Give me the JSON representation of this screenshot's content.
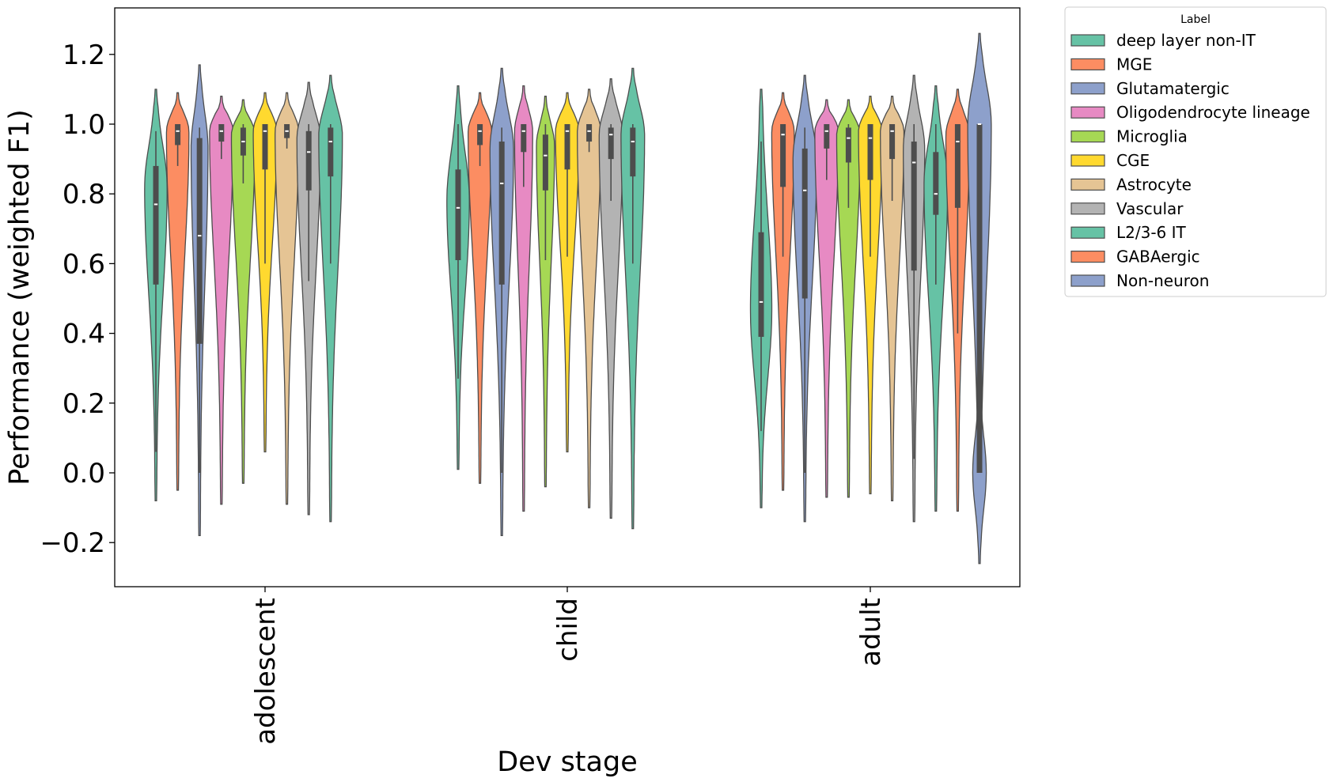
{
  "chart_data": {
    "type": "violin",
    "title": "",
    "xlabel": "Dev stage",
    "ylabel": "Performance (weighted F1)",
    "ylim": [
      -0.33,
      1.33
    ],
    "yticks": [
      -0.2,
      0.0,
      0.2,
      0.4,
      0.6,
      0.8,
      1.0,
      1.2
    ],
    "ytick_labels": [
      "−0.2",
      "0.0",
      "0.2",
      "0.4",
      "0.6",
      "0.8",
      "1.0",
      "1.2"
    ],
    "grid": false,
    "legend": {
      "title": "Label",
      "placement": "outside-top-right",
      "entries": [
        {
          "label": "deep layer non-IT",
          "color": "#66c2a5"
        },
        {
          "label": "MGE",
          "color": "#fc8d62"
        },
        {
          "label": "Glutamatergic",
          "color": "#8da0cb"
        },
        {
          "label": "Oligodendrocyte lineage",
          "color": "#e78ac3"
        },
        {
          "label": "Microglia",
          "color": "#a6d854"
        },
        {
          "label": "CGE",
          "color": "#ffd92f"
        },
        {
          "label": "Astrocyte",
          "color": "#e5c494"
        },
        {
          "label": "Vascular",
          "color": "#b3b3b3"
        },
        {
          "label": "L2/3-6 IT",
          "color": "#66c2a5"
        },
        {
          "label": "GABAergic",
          "color": "#fc8d62"
        },
        {
          "label": "Non-neuron",
          "color": "#8da0cb"
        }
      ]
    },
    "categories": [
      "adolescent",
      "child",
      "adult"
    ],
    "series_order": [
      "deep layer non-IT",
      "MGE",
      "Glutamatergic",
      "Oligodendrocyte lineage",
      "Microglia",
      "CGE",
      "Astrocyte",
      "Vascular",
      "L2/3-6 IT",
      "GABAergic",
      "Non-neuron"
    ],
    "groups": [
      {
        "category": "adolescent",
        "violins": [
          {
            "label": "deep layer non-IT",
            "min": -0.08,
            "max": 1.1,
            "q1": 0.54,
            "median": 0.77,
            "q3": 0.88,
            "whisker_low": 0.06,
            "whisker_high": 0.98,
            "mode": 0.82,
            "width": 0.95
          },
          {
            "label": "MGE",
            "min": -0.05,
            "max": 1.09,
            "q1": 0.94,
            "median": 0.98,
            "q3": 1.0,
            "whisker_low": 0.88,
            "whisker_high": 1.0,
            "mode": 0.98,
            "width": 0.95
          },
          {
            "label": "Glutamatergic",
            "min": -0.18,
            "max": 1.17,
            "q1": 0.37,
            "median": 0.68,
            "q3": 0.96,
            "whisker_low": 0.0,
            "whisker_high": 0.99,
            "mode": 0.93,
            "width": 0.7
          },
          {
            "label": "Oligodendrocyte lineage",
            "min": -0.09,
            "max": 1.08,
            "q1": 0.95,
            "median": 0.98,
            "q3": 1.0,
            "whisker_low": 0.9,
            "whisker_high": 1.0,
            "mode": 0.98,
            "width": 1.0
          },
          {
            "label": "Microglia",
            "min": -0.03,
            "max": 1.07,
            "q1": 0.91,
            "median": 0.95,
            "q3": 0.99,
            "whisker_low": 0.83,
            "whisker_high": 1.0,
            "mode": 0.97,
            "width": 1.0
          },
          {
            "label": "CGE",
            "min": 0.06,
            "max": 1.09,
            "q1": 0.87,
            "median": 0.98,
            "q3": 1.0,
            "whisker_low": 0.6,
            "whisker_high": 1.0,
            "mode": 0.98,
            "width": 1.0
          },
          {
            "label": "Astrocyte",
            "min": -0.09,
            "max": 1.09,
            "q1": 0.96,
            "median": 0.98,
            "q3": 1.0,
            "whisker_low": 0.93,
            "whisker_high": 1.0,
            "mode": 0.98,
            "width": 1.0
          },
          {
            "label": "Vascular",
            "min": -0.12,
            "max": 1.12,
            "q1": 0.81,
            "median": 0.92,
            "q3": 0.98,
            "whisker_low": 0.55,
            "whisker_high": 1.0,
            "mode": 0.96,
            "width": 1.0
          },
          {
            "label": "L2/3-6 IT",
            "min": -0.14,
            "max": 1.14,
            "q1": 0.85,
            "median": 0.95,
            "q3": 0.99,
            "whisker_low": 0.6,
            "whisker_high": 1.0,
            "mode": 0.97,
            "width": 1.0
          },
          {
            "label": "GABAergic",
            "skipped": true
          },
          {
            "label": "Non-neuron",
            "skipped": true
          }
        ]
      },
      {
        "category": "child",
        "violins": [
          {
            "label": "deep layer non-IT",
            "min": 0.01,
            "max": 1.11,
            "q1": 0.61,
            "median": 0.76,
            "q3": 0.87,
            "whisker_low": 0.27,
            "whisker_high": 1.0,
            "mode": 0.78,
            "width": 0.95
          },
          {
            "label": "MGE",
            "min": -0.03,
            "max": 1.09,
            "q1": 0.94,
            "median": 0.98,
            "q3": 1.0,
            "whisker_low": 0.88,
            "whisker_high": 1.0,
            "mode": 0.98,
            "width": 1.0
          },
          {
            "label": "Glutamatergic",
            "min": -0.18,
            "max": 1.16,
            "q1": 0.54,
            "median": 0.83,
            "q3": 0.95,
            "whisker_low": 0.0,
            "whisker_high": 0.99,
            "mode": 0.93,
            "width": 1.0
          },
          {
            "label": "Oligodendrocyte lineage",
            "min": -0.11,
            "max": 1.11,
            "q1": 0.92,
            "median": 0.98,
            "q3": 1.0,
            "whisker_low": 0.82,
            "whisker_high": 1.0,
            "mode": 0.98,
            "width": 0.75
          },
          {
            "label": "Microglia",
            "min": -0.04,
            "max": 1.08,
            "q1": 0.81,
            "median": 0.91,
            "q3": 0.97,
            "whisker_low": 0.61,
            "whisker_high": 1.0,
            "mode": 0.94,
            "width": 0.75
          },
          {
            "label": "CGE",
            "min": 0.06,
            "max": 1.09,
            "q1": 0.87,
            "median": 0.98,
            "q3": 1.0,
            "whisker_low": 0.62,
            "whisker_high": 1.0,
            "mode": 0.98,
            "width": 1.0
          },
          {
            "label": "Astrocyte",
            "min": -0.1,
            "max": 1.1,
            "q1": 0.95,
            "median": 0.98,
            "q3": 1.0,
            "whisker_low": 0.92,
            "whisker_high": 1.0,
            "mode": 0.98,
            "width": 1.0
          },
          {
            "label": "Vascular",
            "min": -0.13,
            "max": 1.13,
            "q1": 0.9,
            "median": 0.97,
            "q3": 0.99,
            "whisker_low": 0.78,
            "whisker_high": 1.0,
            "mode": 0.97,
            "width": 1.0
          },
          {
            "label": "L2/3-6 IT",
            "min": -0.16,
            "max": 1.16,
            "q1": 0.85,
            "median": 0.95,
            "q3": 0.99,
            "whisker_low": 0.6,
            "whisker_high": 1.0,
            "mode": 0.97,
            "width": 1.0
          },
          {
            "label": "GABAergic",
            "skipped": true
          },
          {
            "label": "Non-neuron",
            "skipped": true
          }
        ]
      },
      {
        "category": "adult",
        "violins": [
          {
            "label": "deep layer non-IT",
            "min": -0.1,
            "max": 1.1,
            "q1": 0.39,
            "median": 0.49,
            "q3": 0.69,
            "whisker_low": 0.12,
            "whisker_high": 0.95,
            "mode": 0.47,
            "width": 0.9
          },
          {
            "label": "MGE",
            "min": -0.05,
            "max": 1.09,
            "q1": 0.82,
            "median": 0.97,
            "q3": 1.0,
            "whisker_low": 0.62,
            "whisker_high": 1.0,
            "mode": 0.98,
            "width": 0.95
          },
          {
            "label": "Glutamatergic",
            "min": -0.14,
            "max": 1.14,
            "q1": 0.5,
            "median": 0.81,
            "q3": 0.93,
            "whisker_low": 0.0,
            "whisker_high": 0.99,
            "mode": 0.9,
            "width": 1.0
          },
          {
            "label": "Oligodendrocyte lineage",
            "min": -0.07,
            "max": 1.07,
            "q1": 0.93,
            "median": 0.98,
            "q3": 1.0,
            "whisker_low": 0.84,
            "whisker_high": 1.0,
            "mode": 0.98,
            "width": 1.0
          },
          {
            "label": "Microglia",
            "min": -0.07,
            "max": 1.07,
            "q1": 0.89,
            "median": 0.96,
            "q3": 0.99,
            "whisker_low": 0.76,
            "whisker_high": 1.0,
            "mode": 0.97,
            "width": 1.0
          },
          {
            "label": "CGE",
            "min": -0.06,
            "max": 1.08,
            "q1": 0.84,
            "median": 0.96,
            "q3": 1.0,
            "whisker_low": 0.62,
            "whisker_high": 1.0,
            "mode": 0.98,
            "width": 1.0
          },
          {
            "label": "Astrocyte",
            "min": -0.08,
            "max": 1.08,
            "q1": 0.9,
            "median": 0.98,
            "q3": 1.0,
            "whisker_low": 0.78,
            "whisker_high": 1.0,
            "mode": 0.98,
            "width": 1.0
          },
          {
            "label": "Vascular",
            "min": -0.14,
            "max": 1.14,
            "q1": 0.58,
            "median": 0.89,
            "q3": 0.95,
            "whisker_low": 0.04,
            "whisker_high": 1.0,
            "mode": 0.93,
            "width": 0.9
          },
          {
            "label": "L2/3-6 IT",
            "min": -0.11,
            "max": 1.11,
            "q1": 0.74,
            "median": 0.8,
            "q3": 0.92,
            "whisker_low": 0.54,
            "whisker_high": 1.0,
            "mode": 0.83,
            "width": 1.0
          },
          {
            "label": "GABAergic",
            "min": -0.11,
            "max": 1.1,
            "q1": 0.76,
            "median": 0.95,
            "q3": 1.0,
            "whisker_low": 0.4,
            "whisker_high": 1.0,
            "mode": 0.97,
            "width": 1.0
          },
          {
            "label": "Non-neuron",
            "min": -0.26,
            "max": 1.26,
            "q1": 0.0,
            "median": 1.0,
            "q3": 1.0,
            "whisker_low": 0.0,
            "whisker_high": 1.0,
            "mode": 1.0,
            "width": 1.0,
            "secondary_mode": 0.0
          }
        ]
      }
    ]
  }
}
